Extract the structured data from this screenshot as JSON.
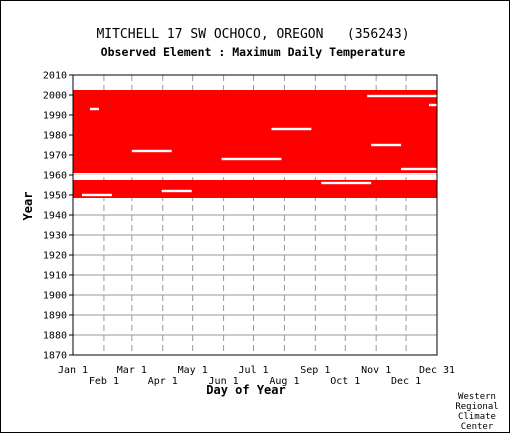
{
  "chart_data": {
    "type": "heatmap",
    "title": "MITCHELL 17 SW OCHOCO, OREGON   (356243)",
    "subtitle": "Observed Element : Maximum Daily Temperature",
    "xlabel": "Day of Year",
    "ylabel": "Year",
    "ylim": [
      1870,
      2010
    ],
    "xlim": [
      1,
      366
    ],
    "yticks": [
      1870,
      1880,
      1890,
      1900,
      1910,
      1920,
      1930,
      1940,
      1950,
      1960,
      1970,
      1980,
      1990,
      2000,
      2010
    ],
    "xticks_top_row": [
      {
        "label": "Jan 1",
        "day": 1
      },
      {
        "label": "Mar 1",
        "day": 60
      },
      {
        "label": "May 1",
        "day": 121
      },
      {
        "label": "Jul 1",
        "day": 182
      },
      {
        "label": "Sep 1",
        "day": 244
      },
      {
        "label": "Nov 1",
        "day": 305
      },
      {
        "label": "Dec 31",
        "day": 366
      }
    ],
    "xticks_bottom_row": [
      {
        "label": "Feb 1",
        "day": 32
      },
      {
        "label": "Apr 1",
        "day": 91
      },
      {
        "label": "Jun 1",
        "day": 152
      },
      {
        "label": "Aug 1",
        "day": 213
      },
      {
        "label": "Oct 1",
        "day": 274
      },
      {
        "label": "Dec 1",
        "day": 335
      }
    ],
    "grid": true,
    "data_color": "#ff0000",
    "series": [
      {
        "values": [
          {
            "from_year": 1948.5,
            "to_year": 1957.5,
            "from_day": 1,
            "to_day": 366
          },
          {
            "from_year": 1961.0,
            "to_year": 2002.5,
            "from_day": 1,
            "to_day": 366
          }
        ]
      }
    ],
    "missing_data": [
      {
        "year": 1959.5,
        "from_day": 1,
        "to_day": 366
      },
      {
        "year": 1993,
        "from_day": 18,
        "to_day": 27
      },
      {
        "year": 1999.5,
        "from_day": 296,
        "to_day": 366
      },
      {
        "year": 1995,
        "from_day": 358,
        "to_day": 366
      },
      {
        "year": 1968,
        "from_day": 150,
        "to_day": 210
      },
      {
        "year": 1952,
        "from_day": 90,
        "to_day": 120
      },
      {
        "year": 1950,
        "from_day": 10,
        "to_day": 40
      },
      {
        "year": 1956,
        "from_day": 250,
        "to_day": 300
      },
      {
        "year": 1972,
        "from_day": 60,
        "to_day": 100
      },
      {
        "year": 1975,
        "from_day": 300,
        "to_day": 330
      },
      {
        "year": 1983,
        "from_day": 200,
        "to_day": 240
      },
      {
        "year": 1963,
        "from_day": 330,
        "to_day": 366
      }
    ]
  },
  "credit": [
    "Western",
    "Regional",
    "Climate",
    "Center"
  ],
  "colors": {
    "background": "#ffffff",
    "grid": "#999999",
    "data": "#ff0000",
    "axis": "#000000"
  }
}
